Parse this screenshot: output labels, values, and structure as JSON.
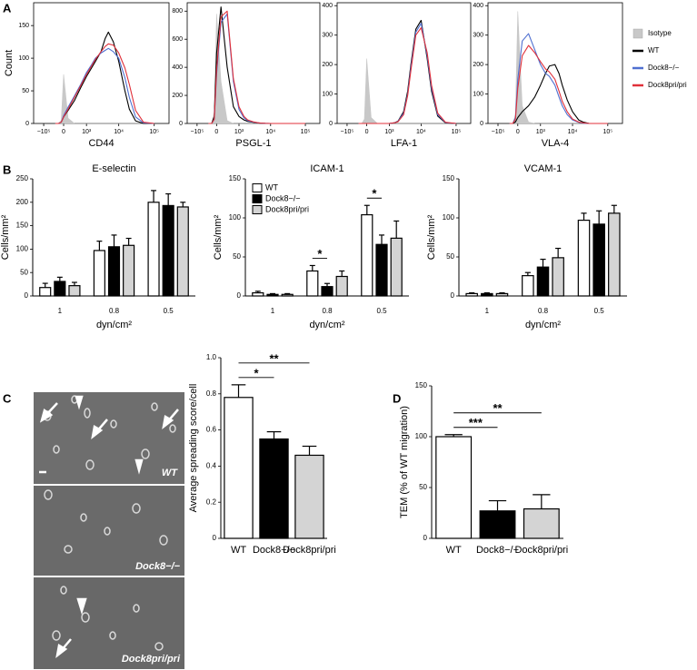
{
  "panels": [
    "A",
    "B",
    "C",
    "D"
  ],
  "micrographs": [
    "WT",
    "Dock8−/−",
    "Dock8pri/pri"
  ],
  "chart_data": [
    {
      "type": "line",
      "xscale": "biexponential",
      "xlabel": "CD44",
      "ylabel": "Count",
      "legend": "outside right",
      "x": [
        -3000,
        -1000,
        -300,
        0,
        100,
        300,
        600,
        1000,
        1500,
        2000,
        3000,
        4000,
        5000,
        7000,
        10000,
        15000,
        20000,
        30000,
        50000,
        100000
      ],
      "xlim": [
        -1890000,
        259000
      ],
      "xticks": [
        {
          "value": -100000,
          "label": "−10⁵"
        },
        0,
        {
          "value": 1000,
          "label": "10³"
        },
        {
          "value": 10000,
          "label": "10⁴"
        },
        {
          "value": 100000,
          "label": "10⁵"
        }
      ],
      "ylim": [
        0,
        185
      ],
      "yticks": [
        0,
        50,
        100,
        150
      ],
      "series": [
        {
          "name": "Isotype",
          "color": "#c8c8c8",
          "filled": true,
          "values": [
            0,
            0,
            5,
            75,
            8,
            0,
            0,
            0,
            0,
            0,
            0,
            0,
            0,
            0,
            0,
            0,
            0,
            0,
            0,
            0
          ]
        },
        {
          "name": "WT",
          "color": "#000000",
          "values": [
            0,
            0,
            2,
            10,
            20,
            35,
            55,
            72,
            85,
            95,
            110,
            130,
            140,
            125,
            95,
            50,
            22,
            4,
            0,
            0
          ]
        },
        {
          "name": "Dock8−/−",
          "color": "#4f6fd0",
          "values": [
            0,
            0,
            2,
            12,
            25,
            42,
            60,
            78,
            90,
            100,
            108,
            112,
            115,
            110,
            100,
            70,
            40,
            10,
            1,
            0
          ]
        },
        {
          "name": "Dock8pri/pri",
          "color": "#e0303a",
          "values": [
            0,
            0,
            2,
            10,
            22,
            40,
            58,
            75,
            88,
            98,
            110,
            118,
            122,
            120,
            108,
            85,
            60,
            20,
            2,
            0
          ]
        }
      ]
    },
    {
      "type": "line",
      "xscale": "biexponential",
      "xlabel": "PSGL-1",
      "x": [
        -3000,
        -1000,
        -300,
        0,
        100,
        300,
        600,
        1000,
        1500,
        2000,
        3000,
        4000,
        5000,
        7000,
        10000,
        15000,
        20000,
        30000,
        50000,
        100000
      ],
      "xlim": [
        -1890000,
        259000
      ],
      "xticks": [
        {
          "value": -100000,
          "label": "−10⁵"
        },
        0,
        {
          "value": 1000,
          "label": "10³"
        },
        {
          "value": 10000,
          "label": "10⁴"
        },
        {
          "value": 100000,
          "label": "10⁵"
        }
      ],
      "ylim": [
        0,
        860
      ],
      "yticks": [
        0,
        200,
        400,
        600,
        800
      ],
      "series": [
        {
          "color": "#c8c8c8",
          "filled": true,
          "values": [
            0,
            0,
            80,
            780,
            300,
            20,
            0,
            0,
            0,
            0,
            0,
            0,
            0,
            0,
            0,
            0,
            0,
            0,
            0,
            0
          ]
        },
        {
          "color": "#000000",
          "values": [
            0,
            0,
            50,
            500,
            830,
            400,
            120,
            50,
            25,
            15,
            8,
            4,
            2,
            0,
            0,
            0,
            0,
            0,
            0,
            0
          ]
        },
        {
          "color": "#4f6fd0",
          "values": [
            0,
            0,
            30,
            350,
            720,
            780,
            300,
            100,
            40,
            20,
            10,
            5,
            3,
            1,
            0,
            0,
            0,
            0,
            0,
            0
          ]
        },
        {
          "color": "#e0303a",
          "values": [
            0,
            0,
            30,
            380,
            760,
            800,
            320,
            120,
            50,
            25,
            12,
            6,
            3,
            1,
            0,
            0,
            0,
            0,
            0,
            0
          ]
        }
      ]
    },
    {
      "type": "line",
      "xscale": "biexponential",
      "xlabel": "LFA-1",
      "x": [
        -3000,
        -1000,
        -300,
        0,
        100,
        300,
        600,
        1000,
        1500,
        2000,
        3000,
        4000,
        5000,
        7000,
        10000,
        15000,
        20000,
        30000,
        50000,
        100000
      ],
      "xlim": [
        -1890000,
        259000
      ],
      "xticks": [
        {
          "value": -100000,
          "label": "−10⁵"
        },
        0,
        {
          "value": 1000,
          "label": "10³"
        },
        {
          "value": 10000,
          "label": "10⁴"
        },
        {
          "value": 100000,
          "label": "10⁵"
        }
      ],
      "ylim": [
        0,
        410
      ],
      "yticks": [
        0,
        100,
        200,
        300,
        400
      ],
      "series": [
        {
          "color": "#c8c8c8",
          "filled": true,
          "values": [
            0,
            0,
            15,
            220,
            20,
            0,
            0,
            0,
            0,
            0,
            0,
            0,
            0,
            0,
            0,
            0,
            0,
            0,
            0,
            0
          ]
        },
        {
          "color": "#000000",
          "values": [
            0,
            0,
            0,
            0,
            0,
            0,
            0,
            0,
            2,
            8,
            40,
            110,
            200,
            320,
            350,
            220,
            110,
            25,
            2,
            0
          ]
        },
        {
          "color": "#4f6fd0",
          "values": [
            0,
            0,
            0,
            0,
            0,
            0,
            0,
            0,
            2,
            7,
            35,
            100,
            190,
            310,
            340,
            230,
            120,
            30,
            3,
            0
          ]
        },
        {
          "color": "#e0303a",
          "values": [
            0,
            0,
            0,
            0,
            0,
            0,
            0,
            0,
            2,
            6,
            30,
            95,
            180,
            300,
            325,
            240,
            130,
            35,
            4,
            0
          ]
        }
      ]
    },
    {
      "type": "line",
      "xscale": "biexponential",
      "xlabel": "VLA-4",
      "x": [
        -3000,
        -1000,
        -300,
        0,
        100,
        300,
        600,
        1000,
        1500,
        2000,
        3000,
        4000,
        5000,
        7000,
        10000,
        15000,
        20000,
        30000,
        50000,
        100000
      ],
      "xlim": [
        -1890000,
        259000
      ],
      "xticks": [
        {
          "value": -100000,
          "label": "−10⁵"
        },
        0,
        {
          "value": 1000,
          "label": "10³"
        },
        {
          "value": 10000,
          "label": "10⁴"
        },
        {
          "value": 100000,
          "label": "10⁵"
        }
      ],
      "ylim": [
        0,
        410
      ],
      "yticks": [
        0,
        100,
        200,
        300,
        400
      ],
      "series": [
        {
          "color": "#c8c8c8",
          "filled": true,
          "values": [
            0,
            0,
            30,
            380,
            60,
            5,
            0,
            0,
            0,
            0,
            0,
            0,
            0,
            0,
            0,
            0,
            0,
            0,
            0,
            0
          ]
        },
        {
          "color": "#000000",
          "values": [
            0,
            0,
            5,
            20,
            40,
            60,
            90,
            130,
            170,
            195,
            200,
            170,
            130,
            80,
            40,
            12,
            5,
            0,
            0,
            0
          ]
        },
        {
          "color": "#4f6fd0",
          "values": [
            0,
            0,
            20,
            150,
            280,
            305,
            250,
            200,
            170,
            160,
            130,
            90,
            60,
            30,
            12,
            4,
            1,
            0,
            0,
            0
          ]
        },
        {
          "color": "#e0303a",
          "values": [
            0,
            0,
            15,
            120,
            230,
            265,
            240,
            210,
            185,
            175,
            150,
            110,
            75,
            40,
            15,
            5,
            2,
            0,
            0,
            0
          ]
        }
      ]
    },
    {
      "type": "bar",
      "title": "E-selectin",
      "categories": [
        "1",
        "0.8",
        "0.5"
      ],
      "xlabel": "dyn/cm²",
      "ylabel": "Cells/mm²",
      "ylim": [
        0,
        250
      ],
      "yticks": [
        0,
        50,
        100,
        150,
        200,
        250
      ],
      "series": [
        {
          "color": "#ffffff",
          "values": [
            18,
            97,
            200
          ],
          "errors": [
            9,
            20,
            25
          ]
        },
        {
          "color": "#000000",
          "values": [
            31,
            105,
            193
          ],
          "errors": [
            9,
            25,
            25
          ]
        },
        {
          "color": "#d4d4d4",
          "values": [
            22,
            108,
            190
          ],
          "errors": [
            7,
            15,
            10
          ]
        }
      ]
    },
    {
      "type": "bar",
      "title": "ICAM-1",
      "categories": [
        "1",
        "0.8",
        "0.5"
      ],
      "xlabel": "dyn/cm²",
      "ylabel": "Cells/mm²",
      "ylim": [
        0,
        150
      ],
      "yticks": [
        0,
        50,
        100,
        150
      ],
      "legend": "upper left",
      "series": [
        {
          "name": "WT",
          "color": "#ffffff",
          "values": [
            4,
            32,
            104
          ],
          "errors": [
            2,
            7,
            12
          ]
        },
        {
          "name": "Dock8−/−",
          "color": "#000000",
          "values": [
            2,
            12,
            66
          ],
          "errors": [
            1,
            4,
            12
          ]
        },
        {
          "name": "Dock8pri/pri",
          "color": "#d4d4d4",
          "values": [
            2,
            25,
            74
          ],
          "errors": [
            1,
            7,
            22
          ]
        }
      ],
      "annotations": [
        {
          "text": "*"
        },
        {
          "text": "*"
        }
      ]
    },
    {
      "type": "bar",
      "title": "VCAM-1",
      "categories": [
        "1",
        "0.8",
        "0.5"
      ],
      "xlabel": "dyn/cm²",
      "ylabel": "Cells/mm²",
      "ylim": [
        0,
        150
      ],
      "yticks": [
        0,
        50,
        100,
        150
      ],
      "series": [
        {
          "color": "#ffffff",
          "values": [
            3,
            26,
            97
          ],
          "errors": [
            1,
            4,
            9
          ]
        },
        {
          "color": "#000000",
          "values": [
            3,
            37,
            92
          ],
          "errors": [
            1,
            10,
            17
          ]
        },
        {
          "color": "#d4d4d4",
          "values": [
            3,
            49,
            106
          ],
          "errors": [
            1,
            12,
            10
          ]
        }
      ]
    },
    {
      "type": "bar",
      "categories": [
        "WT",
        "Dock8−/−",
        "Dock8pri/pri"
      ],
      "ylabel": "Average spreading score/cell",
      "values": [
        0.78,
        0.55,
        0.46
      ],
      "errors": [
        0.07,
        0.04,
        0.05
      ],
      "colors": [
        "#ffffff",
        "#000000",
        "#d4d4d4"
      ],
      "ylim": [
        0,
        1
      ],
      "yticks": [
        0,
        0.2,
        0.4,
        0.6,
        0.8,
        {
          "value": 1,
          "label": "1.0"
        }
      ],
      "annotations": [
        {
          "text": "*"
        },
        {
          "text": "**"
        }
      ]
    },
    {
      "type": "bar",
      "categories": [
        "WT",
        "Dock8−/−",
        "Dock8pri/pri"
      ],
      "ylabel": "TEM (% of WT migration)",
      "values": [
        100,
        27,
        29
      ],
      "errors": [
        2,
        10,
        14
      ],
      "colors": [
        "#ffffff",
        "#000000",
        "#d4d4d4"
      ],
      "ylim": [
        0,
        150
      ],
      "yticks": [
        0,
        50,
        100,
        150
      ],
      "annotations": [
        {
          "text": "***"
        },
        {
          "text": "**"
        }
      ]
    }
  ]
}
